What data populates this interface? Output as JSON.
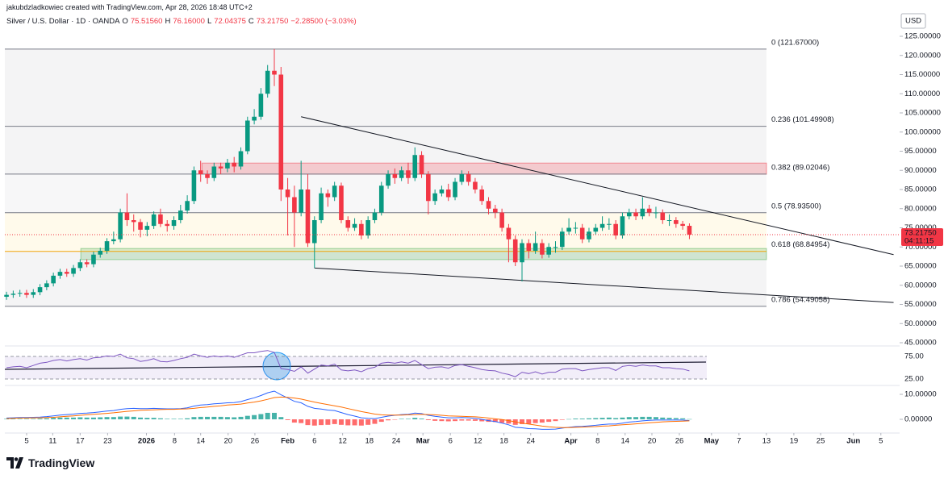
{
  "header": {
    "author_line": "jakubdzladkowiec created with TradingView.com, Apr 28, 2026 18:48 UTC+2",
    "symbol": "Silver / U.S. Dollar · 1D · OANDA",
    "ohlc": [
      {
        "key": "O",
        "value": "75.51560"
      },
      {
        "key": "H",
        "value": "76.16000"
      },
      {
        "key": "L",
        "value": "72.04375"
      },
      {
        "key": "C",
        "value": "73.21750"
      }
    ],
    "change": "−2.28500 (−3.03%)"
  },
  "chart_data": {
    "type": "candlestick",
    "currency": "USD",
    "up_color": "#089981",
    "down_color": "#f23645",
    "open": [
      57.0,
      57.5,
      57.8,
      58.0,
      57.5,
      58.2,
      59.5,
      60.5,
      62.5,
      63.5,
      63.0,
      64.5,
      66.0,
      65.5,
      68.0,
      69.0,
      71.5,
      72.0,
      79.0,
      77.0,
      76.5,
      74.5,
      75.5,
      78.5,
      76.0,
      75.5,
      77.0,
      79.5,
      82.0,
      90.0,
      89.0,
      88.0,
      91.0,
      90.5,
      92.0,
      91.0,
      95.0,
      103.0,
      104.0,
      110.0,
      116.0,
      115.0,
      85.0,
      83.0,
      79.0,
      85.0,
      71.0,
      77.0,
      84.0,
      83.0,
      86.0,
      77.0,
      75.0,
      76.0,
      73.0,
      77.0,
      79.0,
      86.0,
      89.0,
      88.0,
      90.0,
      88.0,
      94.0,
      89.0,
      82.0,
      84.0,
      85.0,
      83.0,
      87.0,
      89.0,
      87.0,
      85.0,
      82.0,
      80.0,
      79.0,
      75.0,
      72.0,
      66.0,
      71.0,
      69.0,
      71.0,
      68.0,
      70.0,
      70.0,
      74.0,
      75.0,
      75.0,
      72.0,
      74.0,
      75.0,
      76.0,
      76.0,
      73.0,
      78.0,
      79.0,
      78.0,
      80.0,
      79.0,
      79.0,
      77.0,
      77.0,
      76.0,
      75.5156
    ],
    "high": [
      58.3,
      58.6,
      58.8,
      58.8,
      59.0,
      60.3,
      61.3,
      63.3,
      64.3,
      64.3,
      65.3,
      66.8,
      66.8,
      68.8,
      69.8,
      72.3,
      74.0,
      80.0,
      84.0,
      78.5,
      77.3,
      76.5,
      79.3,
      80.0,
      77.0,
      78.0,
      81.0,
      83.5,
      91.0,
      92.5,
      90.0,
      92.0,
      92.0,
      93.0,
      93.5,
      96.0,
      104.0,
      106.0,
      111.5,
      117.5,
      121.67,
      117.0,
      88.0,
      86.0,
      92.5,
      89.0,
      78.0,
      85.5,
      85.0,
      87.0,
      86.8,
      78.0,
      77.5,
      77.0,
      78.0,
      80.0,
      87.0,
      90.0,
      90.5,
      91.0,
      92.0,
      96.0,
      95.0,
      89.8,
      85.0,
      86.0,
      86.5,
      88.0,
      90.0,
      89.8,
      88.0,
      86.0,
      83.0,
      81.0,
      80.0,
      76.0,
      73.0,
      72.0,
      72.0,
      74.0,
      72.0,
      71.0,
      71.5,
      75.0,
      77.5,
      76.5,
      76.0,
      75.0,
      76.0,
      78.0,
      77.5,
      77.0,
      79.0,
      80.0,
      80.0,
      83.0,
      81.0,
      80.5,
      79.8,
      78.5,
      77.8,
      76.8,
      76.16
    ],
    "low": [
      56.2,
      56.7,
      57.0,
      56.7,
      56.7,
      57.4,
      58.7,
      59.7,
      61.7,
      62.2,
      62.2,
      63.7,
      64.7,
      64.7,
      67.2,
      68.2,
      70.7,
      71.2,
      75.5,
      74.0,
      72.5,
      72.8,
      74.7,
      75.2,
      74.0,
      74.5,
      76.2,
      78.7,
      81.2,
      87.0,
      86.5,
      87.2,
      89.0,
      89.5,
      89.5,
      90.2,
      94.2,
      102.0,
      103.2,
      109.0,
      112.0,
      82.0,
      73.0,
      70.0,
      78.0,
      70.0,
      64.5,
      76.2,
      80.5,
      82.0,
      76.2,
      74.0,
      74.2,
      72.0,
      72.2,
      76.2,
      78.2,
      85.2,
      86.5,
      87.2,
      86.5,
      87.2,
      88.0,
      78.5,
      81.0,
      83.2,
      82.0,
      82.2,
      86.2,
      86.0,
      84.0,
      81.0,
      78.5,
      77.5,
      74.0,
      66.0,
      65.0,
      61.0,
      67.0,
      68.2,
      67.0,
      67.2,
      68.5,
      69.2,
      73.2,
      73.5,
      71.0,
      71.2,
      73.2,
      74.2,
      74.5,
      72.0,
      72.2,
      77.2,
      77.0,
      77.2,
      78.0,
      77.5,
      76.0,
      75.5,
      75.0,
      74.5,
      72.04375
    ],
    "close": [
      57.5,
      57.8,
      58.0,
      57.5,
      58.2,
      59.5,
      60.5,
      62.5,
      63.5,
      63.0,
      64.5,
      66.0,
      65.5,
      68.0,
      69.0,
      71.5,
      72.0,
      79.0,
      77.0,
      76.5,
      74.5,
      75.5,
      78.5,
      76.0,
      75.5,
      77.0,
      79.5,
      82.0,
      90.0,
      89.0,
      88.0,
      91.0,
      90.5,
      92.0,
      91.0,
      95.0,
      103.0,
      104.0,
      110.0,
      116.0,
      115.0,
      85.0,
      83.0,
      79.0,
      85.0,
      71.0,
      77.0,
      84.0,
      83.0,
      86.0,
      77.0,
      75.0,
      76.0,
      73.0,
      77.0,
      79.0,
      86.0,
      89.0,
      88.0,
      90.0,
      88.0,
      94.0,
      89.0,
      82.0,
      84.0,
      85.0,
      83.0,
      87.0,
      89.0,
      87.0,
      85.0,
      82.0,
      80.0,
      79.0,
      75.0,
      72.0,
      66.0,
      71.0,
      69.0,
      71.0,
      68.0,
      70.0,
      70.0,
      74.0,
      75.0,
      75.0,
      72.0,
      74.0,
      75.0,
      76.0,
      76.0,
      73.0,
      78.0,
      79.0,
      78.0,
      80.0,
      79.0,
      79.0,
      77.0,
      77.0,
      76.0,
      75.5156,
      73.2175
    ],
    "xlim": [
      -0.25,
      133.4
    ],
    "xticks": [
      {
        "value": 3.0,
        "label": "5"
      },
      {
        "value": 6.9,
        "label": "11"
      },
      {
        "value": 11.0,
        "label": "17"
      },
      {
        "value": 15.1,
        "label": "23"
      },
      {
        "value": 20.9,
        "label": "2026"
      },
      {
        "value": 25.1,
        "label": "8"
      },
      {
        "value": 29.0,
        "label": "14"
      },
      {
        "value": 33.1,
        "label": "20"
      },
      {
        "value": 37.1,
        "label": "26"
      },
      {
        "value": 42.0,
        "label": "Feb"
      },
      {
        "value": 46.0,
        "label": "6"
      },
      {
        "value": 50.2,
        "label": "12"
      },
      {
        "value": 54.2,
        "label": "18"
      },
      {
        "value": 58.2,
        "label": "24"
      },
      {
        "value": 62.2,
        "label": "Mar"
      },
      {
        "value": 66.3,
        "label": "6"
      },
      {
        "value": 70.4,
        "label": "12"
      },
      {
        "value": 74.3,
        "label": "18"
      },
      {
        "value": 78.3,
        "label": "24"
      },
      {
        "value": 84.3,
        "label": "Apr"
      },
      {
        "value": 88.3,
        "label": "8"
      },
      {
        "value": 92.4,
        "label": "14"
      },
      {
        "value": 96.4,
        "label": "20"
      },
      {
        "value": 100.5,
        "label": "26"
      },
      {
        "value": 105.3,
        "label": "May"
      },
      {
        "value": 109.4,
        "label": "7"
      },
      {
        "value": 113.5,
        "label": "13"
      },
      {
        "value": 117.6,
        "label": "19"
      },
      {
        "value": 121.6,
        "label": "25"
      },
      {
        "value": 126.5,
        "label": "Jun"
      },
      {
        "value": 130.6,
        "label": "5"
      }
    ],
    "ylim": [
      45,
      125
    ],
    "yticks": [
      {
        "value": 125,
        "label": "125.00000"
      },
      {
        "value": 120,
        "label": "120.00000"
      },
      {
        "value": 115,
        "label": "115.00000"
      },
      {
        "value": 110,
        "label": "110.00000"
      },
      {
        "value": 105,
        "label": "105.00000"
      },
      {
        "value": 100,
        "label": "100.00000"
      },
      {
        "value": 95,
        "label": "95.00000"
      },
      {
        "value": 90,
        "label": "90.00000"
      },
      {
        "value": 85,
        "label": "85.00000"
      },
      {
        "value": 80,
        "label": "80.00000"
      },
      {
        "value": 75,
        "label": "75.00000"
      },
      {
        "value": 70,
        "label": "70.00000"
      },
      {
        "value": 65,
        "label": "65.00000"
      },
      {
        "value": 60,
        "label": "60.00000"
      },
      {
        "value": 55,
        "label": "55.00000"
      },
      {
        "value": 50,
        "label": "50.00000"
      },
      {
        "value": 45,
        "label": "45.00000"
      }
    ],
    "fib_levels": [
      {
        "value": 121.67,
        "label": "0 (121.67000)",
        "color": "#787b86",
        "band_color": "#f4f4f5"
      },
      {
        "value": 101.49908,
        "label": "0.236 (101.49908)",
        "color": "#787b86",
        "band_color": "#f4f4f5"
      },
      {
        "value": 89.02046,
        "label": "0.382 (89.02046)",
        "color": "#787b86",
        "band_color": "#f7f7f8"
      },
      {
        "value": 78.935,
        "label": "0.5 (78.93500)",
        "color": "#787b86",
        "band_color": "#fffaeb"
      },
      {
        "value": 68.84954,
        "label": "0.618 (68.84954)",
        "color": "#f0a30a",
        "band_color": "#f4f4f5"
      },
      {
        "value": 54.49058,
        "label": "0.786 (54.49058)",
        "color": "#787b86"
      }
    ],
    "zones": [
      {
        "from": 29.2,
        "low": 89.0,
        "high": 91.9,
        "color": "#f23645"
      },
      {
        "from": 11.1,
        "low": 66.7,
        "high": 69.6,
        "color": "#4caf50"
      }
    ],
    "trendlines": [
      {
        "points": [
          [
            44,
            104
          ],
          [
            132.5,
            68
          ]
        ]
      },
      {
        "points": [
          [
            46,
            64.5
          ],
          [
            132.5,
            55.5
          ]
        ]
      }
    ],
    "last_price": {
      "value": 73.2175,
      "label": "73.21750",
      "countdown": "04:11:15",
      "color": "#f23645"
    },
    "rsi": {
      "type": "line",
      "color": "#7e57c2",
      "ylim": [
        0,
        100
      ],
      "yticks": [
        {
          "value": 75,
          "label": "75.00"
        },
        {
          "value": 25,
          "label": "25.00"
        }
      ],
      "values": [
        50,
        52,
        53,
        50,
        55,
        60,
        62,
        66,
        68,
        65,
        68,
        70,
        67,
        72,
        73,
        76,
        75,
        80,
        72,
        70,
        64,
        66,
        70,
        64,
        63,
        66,
        70,
        73,
        80,
        76,
        73,
        76,
        74,
        76,
        73,
        78,
        83,
        83,
        86,
        88,
        84,
        48,
        46,
        42,
        52,
        38,
        47,
        56,
        54,
        58,
        45,
        43,
        45,
        41,
        48,
        51,
        60,
        62,
        60,
        63,
        60,
        66,
        57,
        48,
        51,
        52,
        49,
        55,
        57,
        53,
        50,
        46,
        44,
        43,
        38,
        35,
        30,
        40,
        37,
        41,
        36,
        40,
        40,
        47,
        48,
        48,
        43,
        46,
        48,
        50,
        50,
        44,
        53,
        55,
        53,
        56,
        54,
        54,
        50,
        50,
        48,
        47,
        43
      ]
    },
    "macd": {
      "type": "macd",
      "ylim": [
        -6.45,
        12.9
      ],
      "yticks": [
        {
          "value": 10,
          "label": "10.00000"
        },
        {
          "value": 0,
          "label": "0.00000"
        }
      ],
      "macd_color": "#2962ff",
      "signal_color": "#ff6d00",
      "positive_color": "#26a69a",
      "negative_color": "#ff5252",
      "macd": [
        0.5,
        0.6,
        0.7,
        0.7,
        0.8,
        0.9,
        1.1,
        1.4,
        1.7,
        1.9,
        2.1,
        2.4,
        2.5,
        2.7,
        3.0,
        3.3,
        3.5,
        4.0,
        4.3,
        4.4,
        4.3,
        4.3,
        4.4,
        4.3,
        4.2,
        4.2,
        4.3,
        4.6,
        5.3,
        5.7,
        5.9,
        6.2,
        6.4,
        6.6,
        6.7,
        7.1,
        7.9,
        8.6,
        9.5,
        10.6,
        11.3,
        9.8,
        8.5,
        7.2,
        6.6,
        5.2,
        4.4,
        4.1,
        3.7,
        3.5,
        2.7,
        1.9,
        1.3,
        0.6,
        0.4,
        0.3,
        0.8,
        1.3,
        1.6,
        1.9,
        2.0,
        2.5,
        2.3,
        1.6,
        1.2,
        0.9,
        0.6,
        0.6,
        0.7,
        0.6,
        0.4,
        0.0,
        -0.5,
        -0.9,
        -1.5,
        -2.2,
        -3.2,
        -3.4,
        -3.7,
        -3.8,
        -4.0,
        -4.0,
        -3.9,
        -3.5,
        -3.2,
        -2.9,
        -2.8,
        -2.6,
        -2.4,
        -2.1,
        -1.9,
        -1.9,
        -1.5,
        -1.1,
        -0.9,
        -0.6,
        -0.4,
        -0.3,
        -0.3,
        -0.3,
        -0.3,
        -0.3,
        -0.5
      ],
      "signal": [
        0.3,
        0.4,
        0.5,
        0.5,
        0.6,
        0.6,
        0.7,
        0.8,
        1.0,
        1.2,
        1.4,
        1.6,
        1.8,
        2.0,
        2.2,
        2.4,
        2.6,
        2.9,
        3.2,
        3.4,
        3.6,
        3.7,
        3.8,
        3.9,
        4.0,
        4.0,
        4.1,
        4.2,
        4.4,
        4.7,
        4.9,
        5.2,
        5.4,
        5.7,
        5.9,
        6.1,
        6.5,
        6.9,
        7.4,
        8.0,
        8.7,
        8.9,
        8.8,
        8.5,
        8.1,
        7.5,
        6.9,
        6.4,
        5.9,
        5.4,
        4.9,
        4.3,
        3.7,
        3.1,
        2.6,
        2.1,
        1.8,
        1.7,
        1.7,
        1.7,
        1.8,
        1.9,
        2.0,
        1.9,
        1.8,
        1.6,
        1.4,
        1.3,
        1.2,
        1.1,
        1.0,
        0.8,
        0.5,
        0.2,
        -0.1,
        -0.5,
        -1.0,
        -1.5,
        -1.9,
        -2.3,
        -2.7,
        -3.0,
        -3.2,
        -3.3,
        -3.3,
        -3.2,
        -3.1,
        -3.0,
        -2.9,
        -2.7,
        -2.6,
        -2.4,
        -2.2,
        -2.0,
        -1.8,
        -1.6,
        -1.4,
        -1.2,
        -1.0,
        -0.9,
        -0.8,
        -0.7,
        -0.6
      ],
      "histogram": [
        0.2,
        0.2,
        0.2,
        0.2,
        0.2,
        0.3,
        0.4,
        0.6,
        0.7,
        0.7,
        0.7,
        0.8,
        0.7,
        0.7,
        0.8,
        0.9,
        0.9,
        1.1,
        1.1,
        1.0,
        0.7,
        0.6,
        0.6,
        0.4,
        0.2,
        0.2,
        0.2,
        0.4,
        0.9,
        1.0,
        1.0,
        1.0,
        1.0,
        0.9,
        0.8,
        1.0,
        1.4,
        1.7,
        2.1,
        2.6,
        2.6,
        0.9,
        -0.3,
        -1.3,
        -1.5,
        -2.3,
        -2.5,
        -2.3,
        -2.2,
        -1.9,
        -2.2,
        -2.4,
        -2.4,
        -2.5,
        -2.2,
        -1.8,
        -1.0,
        -0.4,
        -0.1,
        0.2,
        0.2,
        0.6,
        0.3,
        -0.3,
        -0.6,
        -0.7,
        -0.8,
        -0.7,
        -0.5,
        -0.5,
        -0.6,
        -0.8,
        -1.0,
        -1.1,
        -1.4,
        -1.7,
        -2.2,
        -1.9,
        -1.8,
        -1.5,
        -1.3,
        -1.0,
        -0.7,
        -0.2,
        0.1,
        0.3,
        0.3,
        0.4,
        0.5,
        0.6,
        0.7,
        0.5,
        0.7,
        0.9,
        0.9,
        1.0,
        1.0,
        0.9,
        0.7,
        0.6,
        0.5,
        0.4,
        0.1
      ]
    }
  },
  "footer": {
    "brand": "TradingView"
  }
}
